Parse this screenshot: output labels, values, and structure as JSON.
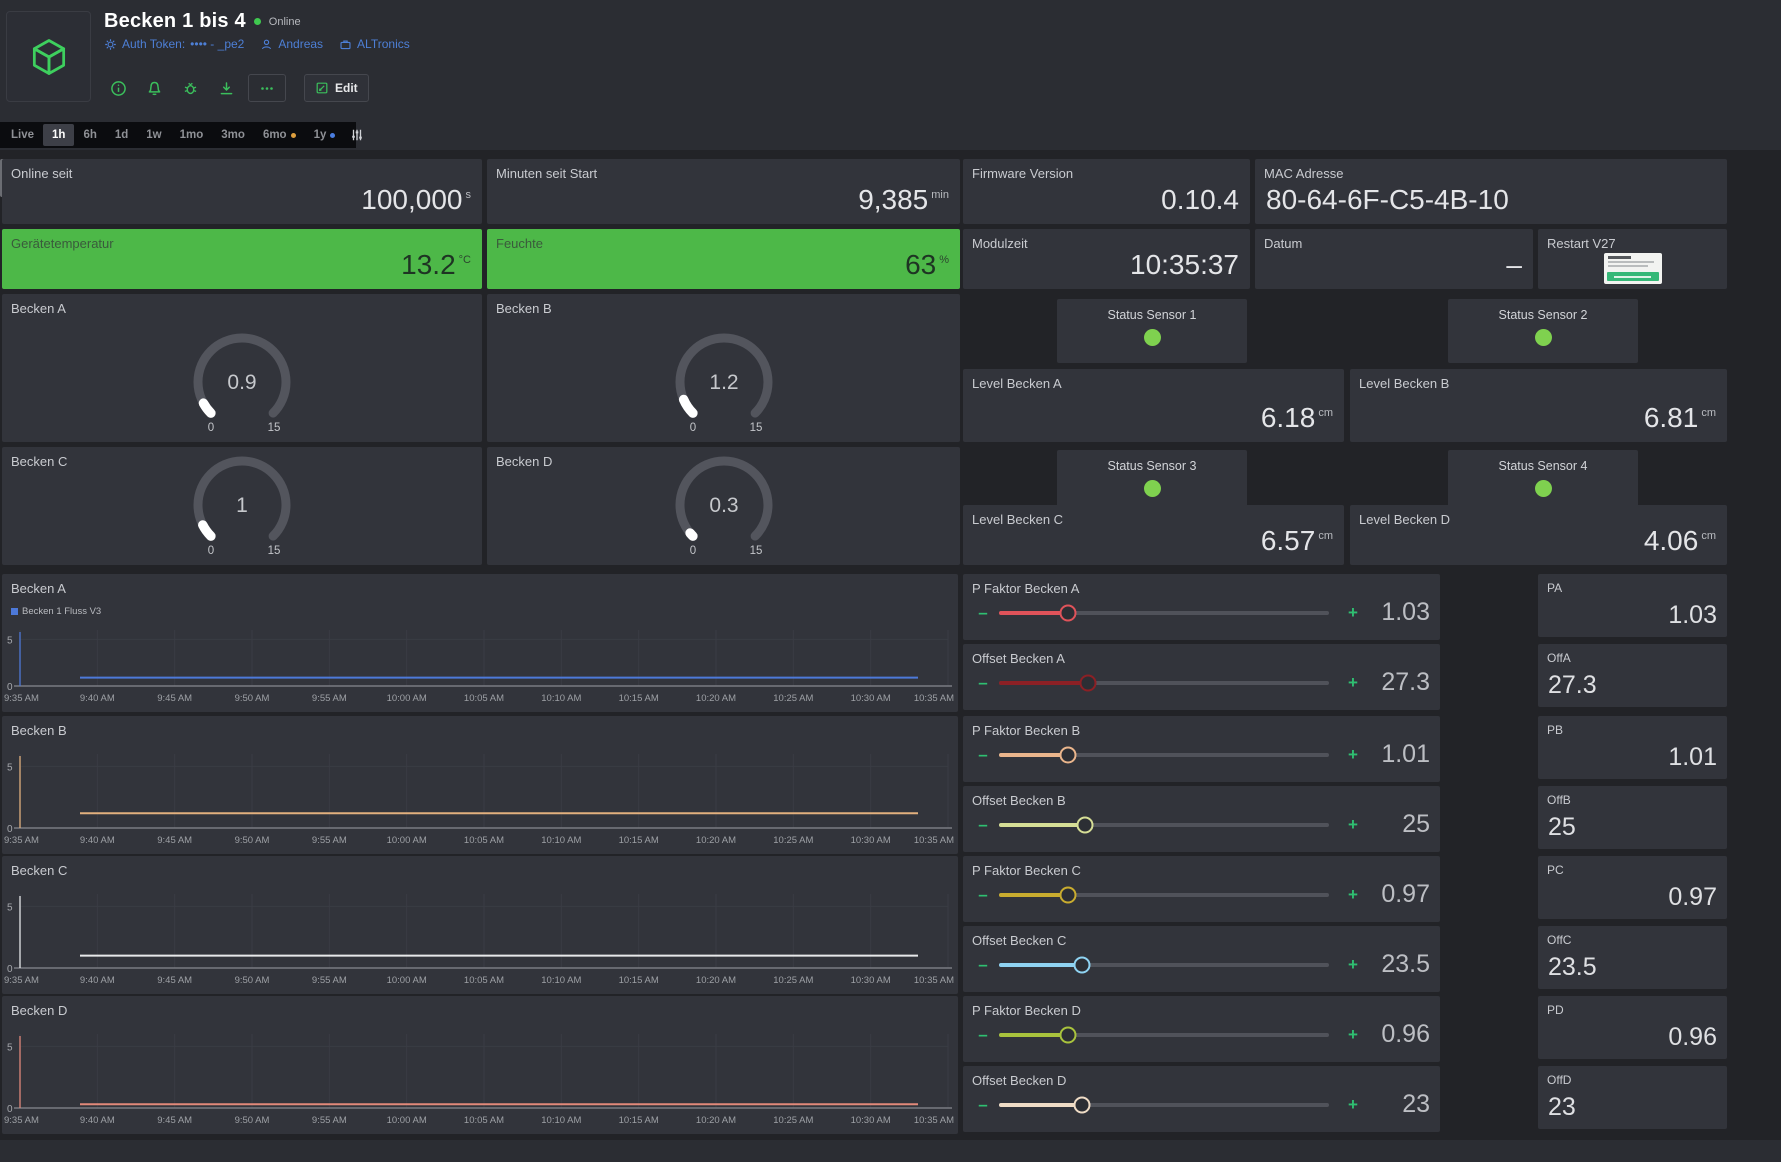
{
  "colors": {
    "accent_green": "#3bbf5c",
    "widget_green": "#4db848",
    "led_green": "#7fd14f",
    "link_blue": "#4d7fd6",
    "card_bg": "#32343b"
  },
  "header": {
    "title": "Becken 1 bis 4",
    "status": "Online",
    "auth_token_label": "Auth Token:",
    "auth_token_value": "•••• - _pe2",
    "user": "Andreas",
    "org": "ALTronics",
    "edit_label": "Edit"
  },
  "timebar": {
    "tabs": [
      {
        "label": "Live"
      },
      {
        "label": "1h",
        "active": true
      },
      {
        "label": "6h"
      },
      {
        "label": "1d"
      },
      {
        "label": "1w"
      },
      {
        "label": "1mo"
      },
      {
        "label": "3mo"
      },
      {
        "label": "6mo",
        "dot": "#dd9f3e"
      },
      {
        "label": "1y",
        "dot": "#4a7de0"
      }
    ]
  },
  "stats": {
    "online_seit": {
      "label": "Online seit",
      "value": "100,000",
      "unit": "s"
    },
    "minuten_seit_start": {
      "label": "Minuten seit Start",
      "value": "9,385",
      "unit": "min"
    },
    "firmware": {
      "label": "Firmware Version",
      "value": "0.10.4"
    },
    "mac": {
      "label": "MAC Adresse",
      "value": "80-64-6F-C5-4B-10"
    },
    "geraetetemperatur": {
      "label": "Gerätetemperatur",
      "value": "13.2",
      "unit": "°C"
    },
    "feuchte": {
      "label": "Feuchte",
      "value": "63",
      "unit": "%"
    },
    "modulzeit": {
      "label": "Modulzeit",
      "value": "10:35:37"
    },
    "datum": {
      "label": "Datum",
      "value": "–"
    },
    "restart": {
      "label": "Restart V27"
    }
  },
  "gauges": [
    {
      "label": "Becken A",
      "value": 0.9,
      "display": "0.9",
      "min": "0",
      "max": "15"
    },
    {
      "label": "Becken B",
      "value": 1.2,
      "display": "1.2",
      "min": "0",
      "max": "15"
    },
    {
      "label": "Becken C",
      "value": 1.0,
      "display": "1",
      "min": "0",
      "max": "15"
    },
    {
      "label": "Becken D",
      "value": 0.3,
      "display": "0.3",
      "min": "0",
      "max": "15"
    }
  ],
  "status_sensors": [
    {
      "label": "Status Sensor 1",
      "state": "on"
    },
    {
      "label": "Status Sensor 2",
      "state": "on"
    },
    {
      "label": "Status Sensor 3",
      "state": "on"
    },
    {
      "label": "Status Sensor 4",
      "state": "on"
    }
  ],
  "levels": [
    {
      "label": "Level Becken A",
      "value": "6.18",
      "unit": "cm"
    },
    {
      "label": "Level Becken B",
      "value": "6.81",
      "unit": "cm"
    },
    {
      "label": "Level Becken C",
      "value": "6.57",
      "unit": "cm"
    },
    {
      "label": "Level Becken D",
      "value": "4.06",
      "unit": "cm"
    }
  ],
  "sliders": [
    {
      "label": "P Faktor Becken A",
      "value": "1.03",
      "pct": 21,
      "color": "#e0535a"
    },
    {
      "label": "Offset Becken A",
      "value": "27.3",
      "pct": 27,
      "color": "#8c2025"
    },
    {
      "label": "P Faktor Becken B",
      "value": "1.01",
      "pct": 21,
      "color": "#eab58c"
    },
    {
      "label": "Offset Becken B",
      "value": "25",
      "pct": 26,
      "color": "#d6de96"
    },
    {
      "label": "P Faktor Becken C",
      "value": "0.97",
      "pct": 21,
      "color": "#c9ac2f"
    },
    {
      "label": "Offset Becken C",
      "value": "23.5",
      "pct": 25,
      "color": "#8fd3f2"
    },
    {
      "label": "P Faktor Becken D",
      "value": "0.96",
      "pct": 21,
      "color": "#a9c33d"
    },
    {
      "label": "Offset Becken D",
      "value": "23",
      "pct": 25,
      "color": "#efdcc6"
    }
  ],
  "pin_values": [
    {
      "label": "PA",
      "value": "1.03"
    },
    {
      "label": "OffA",
      "value": "27.3"
    },
    {
      "label": "PB",
      "value": "1.01"
    },
    {
      "label": "OffB",
      "value": "25"
    },
    {
      "label": "PC",
      "value": "0.97"
    },
    {
      "label": "OffC",
      "value": "23.5"
    },
    {
      "label": "PD",
      "value": "0.96"
    },
    {
      "label": "OffD",
      "value": "23"
    }
  ],
  "chart_data": [
    {
      "type": "line",
      "title": "Becken A",
      "legend": [
        "Becken 1 Fluss V3"
      ],
      "legend_position": "top-left",
      "grid": true,
      "ylim": [
        0,
        6
      ],
      "yticks": [
        0,
        5
      ],
      "x_labels": [
        "9:35 AM",
        "9:40 AM",
        "9:45 AM",
        "9:50 AM",
        "9:55 AM",
        "10:00 AM",
        "10:05 AM",
        "10:10 AM",
        "10:15 AM",
        "10:20 AM",
        "10:25 AM",
        "10:30 AM",
        "10:35 AM"
      ],
      "series": [
        {
          "name": "Becken 1 Fluss V3",
          "color": "#4d79d9",
          "value": 0.9
        }
      ]
    },
    {
      "type": "line",
      "title": "Becken B",
      "grid": true,
      "ylim": [
        0,
        6
      ],
      "yticks": [
        0,
        5
      ],
      "x_labels": [
        "9:35 AM",
        "9:40 AM",
        "9:45 AM",
        "9:50 AM",
        "9:55 AM",
        "10:00 AM",
        "10:05 AM",
        "10:10 AM",
        "10:15 AM",
        "10:20 AM",
        "10:25 AM",
        "10:30 AM",
        "10:35 AM"
      ],
      "series": [
        {
          "name": "Becken B",
          "color": "#e2b07e",
          "value": 1.2
        }
      ]
    },
    {
      "type": "line",
      "title": "Becken C",
      "grid": true,
      "ylim": [
        0,
        6
      ],
      "yticks": [
        0,
        5
      ],
      "x_labels": [
        "9:35 AM",
        "9:40 AM",
        "9:45 AM",
        "9:50 AM",
        "9:55 AM",
        "10:00 AM",
        "10:05 AM",
        "10:10 AM",
        "10:15 AM",
        "10:20 AM",
        "10:25 AM",
        "10:30 AM",
        "10:35 AM"
      ],
      "series": [
        {
          "name": "Becken C",
          "color": "#e8e9eb",
          "value": 1.0
        }
      ]
    },
    {
      "type": "line",
      "title": "Becken D",
      "grid": true,
      "ylim": [
        0,
        6
      ],
      "yticks": [
        0,
        5
      ],
      "x_labels": [
        "9:35 AM",
        "9:40 AM",
        "9:45 AM",
        "9:50 AM",
        "9:55 AM",
        "10:00 AM",
        "10:05 AM",
        "10:10 AM",
        "10:15 AM",
        "10:20 AM",
        "10:25 AM",
        "10:30 AM",
        "10:35 AM"
      ],
      "series": [
        {
          "name": "Becken D",
          "color": "#e2897a",
          "value": 0.3
        }
      ]
    }
  ]
}
